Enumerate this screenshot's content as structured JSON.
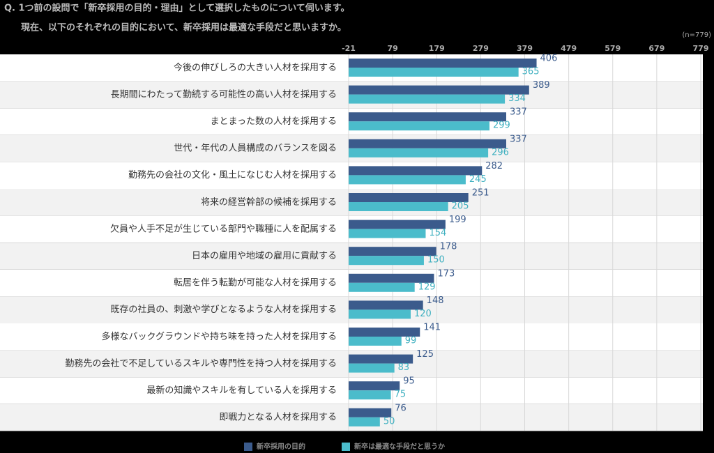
{
  "chart_data": {
    "type": "hbar",
    "title": "Q. 1つ前の設問で「新卒採用の目的・理由」として選択したものについて伺います。",
    "subtitle": "現在、以下のそれぞれの目的において、新卒採用は最適な手段だと思いますか。",
    "note": "(n=779)",
    "categories": [
      "今後の伸びしろの大きい人材を採用する",
      "長期間にわたって勤続する可能性の高い人材を採用する",
      "まとまった数の人材を採用する",
      "世代・年代の人員構成のバランスを図る",
      "勤務先の会社の文化・風土になじむ人材を採用する",
      "将来の経営幹部の候補を採用する",
      "欠員や人手不足が生じている部門や職種に人を配属する",
      "日本の雇用や地域の雇用に貢献する",
      "転居を伴う転勤が可能な人材を採用する",
      "既存の社員の、刺激や学びとなるような人材を採用する",
      "多様なバックグラウンドや持ち味を持った人材を採用する",
      "勤務先の会社で不足しているスキルや専門性を持つ人材を採用する",
      "最新の知識やスキルを有している人を採用する",
      "即戦力となる人材を採用する"
    ],
    "series": [
      {
        "name": "新卒採用の目的",
        "color": "#3b5b8c",
        "label_color": "#3b5b8c",
        "values": [
          406,
          389,
          337,
          337,
          282,
          251,
          199,
          178,
          173,
          148,
          141,
          125,
          95,
          76
        ]
      },
      {
        "name": "新卒は最適な手段だと思うか",
        "color": "#4bbccb",
        "label_color": "#3fb0c0",
        "values": [
          365,
          334,
          299,
          296,
          245,
          205,
          154,
          150,
          129,
          120,
          99,
          83,
          75,
          50
        ]
      }
    ],
    "xlim": [
      -21,
      779
    ],
    "xticks": [
      -21,
      79,
      179,
      279,
      379,
      479,
      579,
      679,
      779
    ],
    "grid": true
  }
}
